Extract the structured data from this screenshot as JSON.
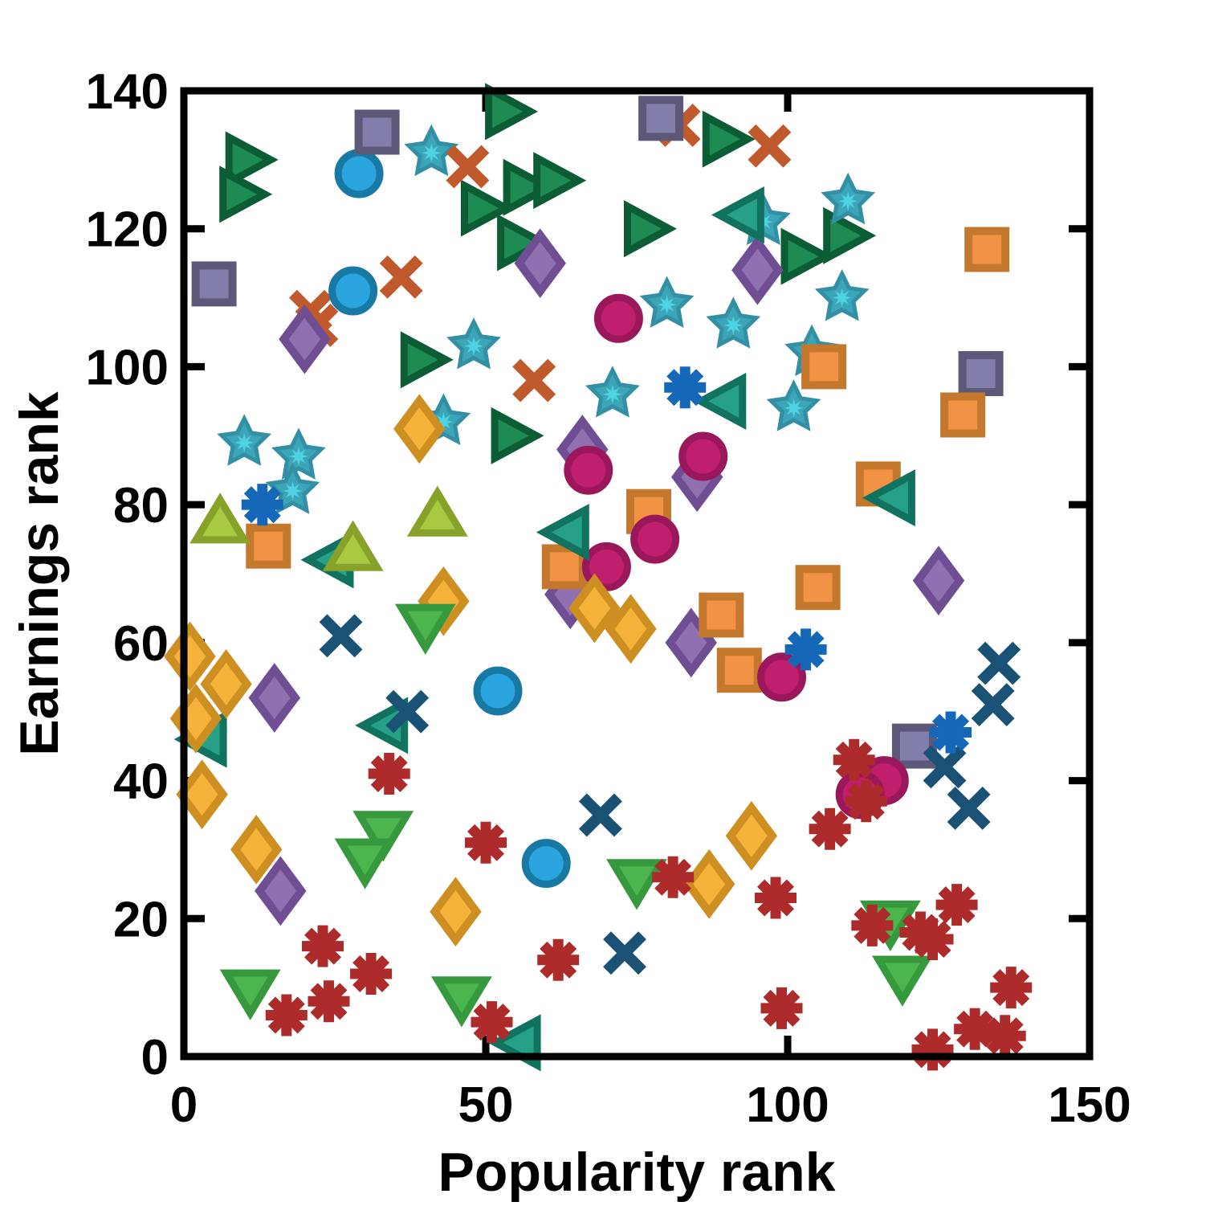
{
  "chart_data": {
    "type": "scatter",
    "title": "",
    "xlabel": "Popularity rank",
    "ylabel": "Earnings rank",
    "xlim": [
      0,
      150
    ],
    "ylim": [
      0,
      140
    ],
    "xticks": [
      0,
      50,
      100,
      150
    ],
    "yticks": [
      0,
      20,
      40,
      60,
      80,
      100,
      120,
      140
    ],
    "grid": false,
    "legend": "none",
    "axis_color": "#000000",
    "background_color": "#ffffff",
    "series": [
      {
        "name": "green-right-triangle",
        "marker": "triangle-right",
        "color": "#1E8B52",
        "edge": "#0C5C35",
        "points": [
          [
            10,
            130
          ],
          [
            9,
            125
          ],
          [
            53,
            137
          ],
          [
            49,
            123
          ],
          [
            56,
            126
          ],
          [
            61,
            127
          ],
          [
            55,
            118
          ],
          [
            76,
            120
          ],
          [
            89,
            133
          ],
          [
            39,
            101
          ],
          [
            54,
            90
          ],
          [
            102,
            116
          ],
          [
            109,
            119
          ]
        ]
      },
      {
        "name": "teal-star",
        "marker": "star",
        "color": "#3DA5B8",
        "edge": "#338FA3",
        "accent": "#4FD2E4",
        "points": [
          [
            41,
            131
          ],
          [
            48,
            103
          ],
          [
            10,
            89
          ],
          [
            19,
            87
          ],
          [
            18,
            82
          ],
          [
            43,
            92
          ],
          [
            71,
            96
          ],
          [
            80,
            109
          ],
          [
            91,
            106
          ],
          [
            96,
            121
          ],
          [
            104,
            102
          ],
          [
            101,
            94
          ],
          [
            110,
            124
          ],
          [
            109,
            110
          ]
        ]
      },
      {
        "name": "orange-x",
        "marker": "x",
        "color": "#C05A2D",
        "edge": "#C05A2D",
        "points": [
          [
            47,
            129
          ],
          [
            36,
            113
          ],
          [
            21,
            108
          ],
          [
            22,
            106
          ],
          [
            82,
            135
          ],
          [
            97,
            132
          ],
          [
            58,
            98
          ]
        ]
      },
      {
        "name": "blue-circle",
        "marker": "circle",
        "color": "#2BA5DF",
        "edge": "#1879A5",
        "points": [
          [
            29,
            128
          ],
          [
            28,
            111
          ],
          [
            52,
            53
          ],
          [
            60,
            28
          ]
        ]
      },
      {
        "name": "slate-square",
        "marker": "square",
        "color": "#817EAC",
        "edge": "#5C5878",
        "points": [
          [
            32,
            134
          ],
          [
            5,
            112
          ],
          [
            79,
            136
          ],
          [
            132,
            99
          ],
          [
            121,
            45
          ]
        ]
      },
      {
        "name": "purple-diamond",
        "marker": "diamond",
        "color": "#9070B0",
        "edge": "#6F4E94",
        "points": [
          [
            20,
            104
          ],
          [
            59,
            115
          ],
          [
            95,
            114
          ],
          [
            66,
            88
          ],
          [
            85,
            84
          ],
          [
            64,
            67
          ],
          [
            84,
            60
          ],
          [
            15,
            52
          ],
          [
            16,
            24
          ],
          [
            125,
            69
          ]
        ]
      },
      {
        "name": "orange-square",
        "marker": "square",
        "color": "#F29244",
        "edge": "#C4782E",
        "points": [
          [
            14,
            74
          ],
          [
            63,
            71
          ],
          [
            77,
            79
          ],
          [
            89,
            64
          ],
          [
            92,
            56
          ],
          [
            106,
            100
          ],
          [
            129,
            93
          ],
          [
            133,
            117
          ],
          [
            115,
            83
          ],
          [
            105,
            68
          ]
        ]
      },
      {
        "name": "crimson-circle",
        "marker": "circle",
        "color": "#C01F6E",
        "edge": "#99175A",
        "points": [
          [
            72,
            107
          ],
          [
            67,
            85
          ],
          [
            86,
            87
          ],
          [
            78,
            75
          ],
          [
            70,
            71
          ],
          [
            99,
            55
          ],
          [
            116,
            40
          ],
          [
            112,
            38
          ]
        ]
      },
      {
        "name": "teal-left-triangle",
        "marker": "triangle-left",
        "color": "#26A188",
        "edge": "#10725F",
        "points": [
          [
            93,
            122
          ],
          [
            90,
            95
          ],
          [
            64,
            76
          ],
          [
            118,
            81
          ],
          [
            25,
            72
          ],
          [
            4,
            46
          ],
          [
            34,
            48
          ],
          [
            56,
            2
          ]
        ]
      },
      {
        "name": "orange-diamond",
        "marker": "diamond",
        "color": "#F6B33C",
        "edge": "#CE8F22",
        "points": [
          [
            1,
            58
          ],
          [
            7,
            54
          ],
          [
            2,
            49
          ],
          [
            3,
            38
          ],
          [
            39,
            91
          ],
          [
            43,
            66
          ],
          [
            68,
            65
          ],
          [
            74,
            62
          ],
          [
            12,
            30
          ],
          [
            45,
            21
          ],
          [
            87,
            25
          ],
          [
            94,
            32
          ]
        ]
      },
      {
        "name": "yellowgreen-up-triangle",
        "marker": "triangle-up",
        "color": "#A9C943",
        "edge": "#87A12B",
        "points": [
          [
            6,
            77
          ],
          [
            42,
            78
          ],
          [
            28,
            73
          ]
        ]
      },
      {
        "name": "green-down-triangle",
        "marker": "triangle-down",
        "color": "#4CB54E",
        "edge": "#37993E",
        "points": [
          [
            40,
            63
          ],
          [
            33,
            33
          ],
          [
            30,
            29
          ],
          [
            11,
            10
          ],
          [
            46,
            9
          ],
          [
            75,
            26
          ],
          [
            117,
            20
          ],
          [
            119,
            12
          ]
        ]
      },
      {
        "name": "darkred-asterisk",
        "marker": "asterisk",
        "color": "#AD2B2B",
        "edge": "#AD2B2B",
        "points": [
          [
            34,
            41
          ],
          [
            111,
            43
          ],
          [
            113,
            37
          ],
          [
            50,
            31
          ],
          [
            23,
            16
          ],
          [
            31,
            12
          ],
          [
            17,
            6
          ],
          [
            24,
            8
          ],
          [
            51,
            5
          ],
          [
            62,
            14
          ],
          [
            81,
            26
          ],
          [
            98,
            23
          ],
          [
            107,
            33
          ],
          [
            114,
            19
          ],
          [
            122,
            18
          ],
          [
            124,
            17
          ],
          [
            128,
            22
          ],
          [
            137,
            10
          ],
          [
            131,
            4
          ],
          [
            136,
            3
          ],
          [
            124,
            1
          ],
          [
            99,
            7
          ]
        ]
      },
      {
        "name": "navy-x",
        "marker": "x",
        "color": "#1A5276",
        "edge": "#1A5276",
        "points": [
          [
            26,
            61
          ],
          [
            37,
            50
          ],
          [
            69,
            35
          ],
          [
            73,
            15
          ],
          [
            135,
            57
          ],
          [
            134,
            51
          ],
          [
            126,
            42
          ],
          [
            130,
            36
          ]
        ]
      },
      {
        "name": "blue-asterisk",
        "marker": "asterisk",
        "color": "#1568B8",
        "edge": "#1568B8",
        "points": [
          [
            13,
            80
          ],
          [
            83,
            97
          ],
          [
            103,
            59
          ],
          [
            127,
            47
          ]
        ]
      }
    ]
  }
}
